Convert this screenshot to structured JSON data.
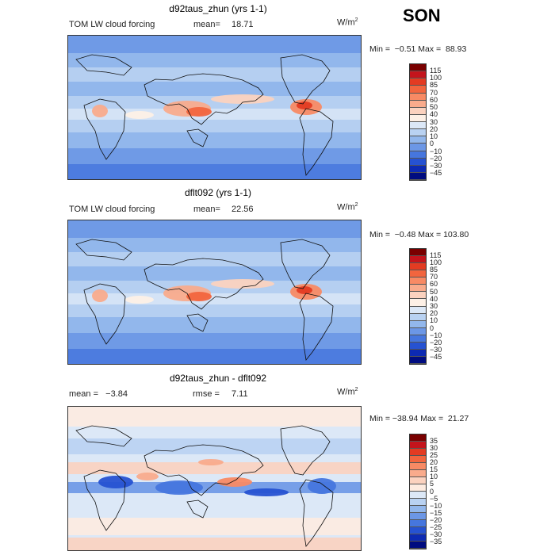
{
  "season": "SON",
  "panels": [
    {
      "title": "d92taus_zhun (yrs 1-1)",
      "left_label": "TOM LW cloud forcing",
      "stat_label": "mean=",
      "stat_value": "18.71",
      "units": "W/m",
      "units_sup": "2",
      "minmax": "Min =  −0.51 Max =  88.93",
      "colorbar": {
        "levels": [
          "115",
          "100",
          "85",
          "70",
          "60",
          "50",
          "40",
          "30",
          "20",
          "10",
          "0",
          "−10",
          "−20",
          "−30",
          "−45"
        ],
        "colors": [
          "#7a0000",
          "#c4141c",
          "#e33b22",
          "#f2653e",
          "#f88a64",
          "#f9ab8c",
          "#fbd2bf",
          "#fdf0e6",
          "#dce8f7",
          "#b9d2f2",
          "#92b7ec",
          "#6c97e6",
          "#4676de",
          "#2652d2",
          "#0d2ab3",
          "#000c80"
        ]
      },
      "map_values": {
        "mean": 18.71,
        "min": -0.51,
        "max": 88.93
      }
    },
    {
      "title": "dflt092 (yrs 1-1)",
      "left_label": "TOM LW cloud forcing",
      "stat_label": "mean=",
      "stat_value": "22.56",
      "units": "W/m",
      "units_sup": "2",
      "minmax": "Min =  −0.48 Max = 103.80",
      "colorbar": {
        "levels": [
          "115",
          "100",
          "85",
          "70",
          "60",
          "50",
          "40",
          "30",
          "20",
          "10",
          "0",
          "−10",
          "−20",
          "−30",
          "−45"
        ],
        "colors": [
          "#7a0000",
          "#c4141c",
          "#e33b22",
          "#f2653e",
          "#f88a64",
          "#f9ab8c",
          "#fbd2bf",
          "#fdf0e6",
          "#dce8f7",
          "#b9d2f2",
          "#92b7ec",
          "#6c97e6",
          "#4676de",
          "#2652d2",
          "#0d2ab3",
          "#000c80"
        ]
      },
      "map_values": {
        "mean": 22.56,
        "min": -0.48,
        "max": 103.8
      }
    },
    {
      "title": "d92taus_zhun - dflt092",
      "left_label": "mean =   −3.84",
      "stat_label": "rmse =",
      "stat_value": "7.11",
      "units": "W/m",
      "units_sup": "2",
      "minmax": "Min = −38.94 Max =  21.27",
      "colorbar": {
        "levels": [
          "35",
          "30",
          "25",
          "20",
          "15",
          "10",
          "5",
          "0",
          "−5",
          "−10",
          "−15",
          "−20",
          "−25",
          "−30",
          "−35"
        ],
        "colors": [
          "#7a0000",
          "#c4141c",
          "#e33b22",
          "#f2653e",
          "#f88a64",
          "#f9ab8c",
          "#fbd2bf",
          "#fdebe0",
          "#dce8f7",
          "#b9d2f2",
          "#92b7ec",
          "#6c97e6",
          "#4676de",
          "#2652d2",
          "#0d2ab3",
          "#000c80"
        ]
      },
      "map_values": {
        "mean": -3.84,
        "rmse": 7.11,
        "min": -38.94,
        "max": 21.27
      }
    }
  ]
}
